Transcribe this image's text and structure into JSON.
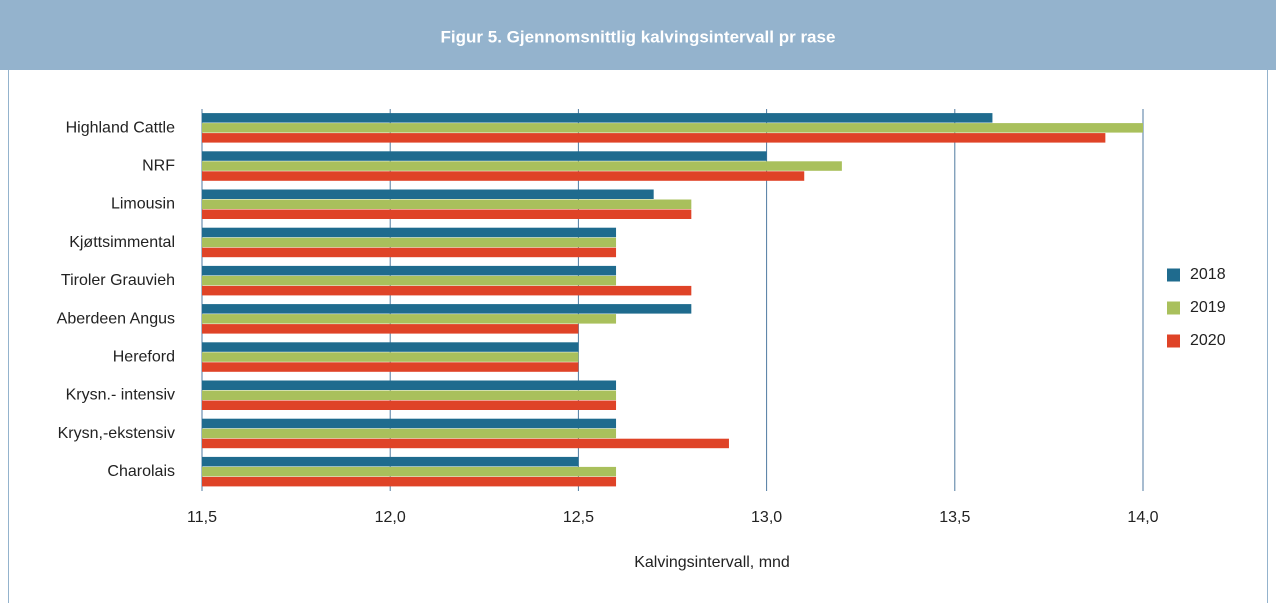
{
  "chart_data": {
    "type": "barh",
    "title": "Figur 5. Gjennomsnittlig kalvingsintervall pr rase",
    "xlabel": "Kalvingsintervall, mnd",
    "categories": [
      "Highland Cattle",
      "NRF",
      "Limousin",
      "Kjøttsimmental",
      "Tiroler Grauvieh",
      "Aberdeen Angus",
      "Hereford",
      "Krysn.- intensiv",
      "Krysn,-ekstensiv",
      "Charolais"
    ],
    "series": [
      {
        "name": "2018",
        "color": "#1f6b8e",
        "values": [
          13.6,
          13.0,
          12.7,
          12.6,
          12.6,
          12.8,
          12.5,
          12.6,
          12.6,
          12.5
        ]
      },
      {
        "name": "2019",
        "color": "#a9c05c",
        "values": [
          14.0,
          13.2,
          12.8,
          12.6,
          12.6,
          12.6,
          12.5,
          12.6,
          12.6,
          12.6
        ]
      },
      {
        "name": "2020",
        "color": "#df4327",
        "values": [
          13.9,
          13.1,
          12.8,
          12.6,
          12.8,
          12.5,
          12.5,
          12.6,
          12.9,
          12.6
        ]
      }
    ],
    "xlim": [
      11.5,
      14.0
    ],
    "xticks": [
      {
        "value": 11.5,
        "label": "11,5"
      },
      {
        "value": 12.0,
        "label": "12,0"
      },
      {
        "value": 12.5,
        "label": "12,5"
      },
      {
        "value": 13.0,
        "label": "13,0"
      },
      {
        "value": 13.5,
        "label": "13,5"
      },
      {
        "value": 14.0,
        "label": "14,0"
      }
    ],
    "grid": true,
    "legend": "right"
  }
}
